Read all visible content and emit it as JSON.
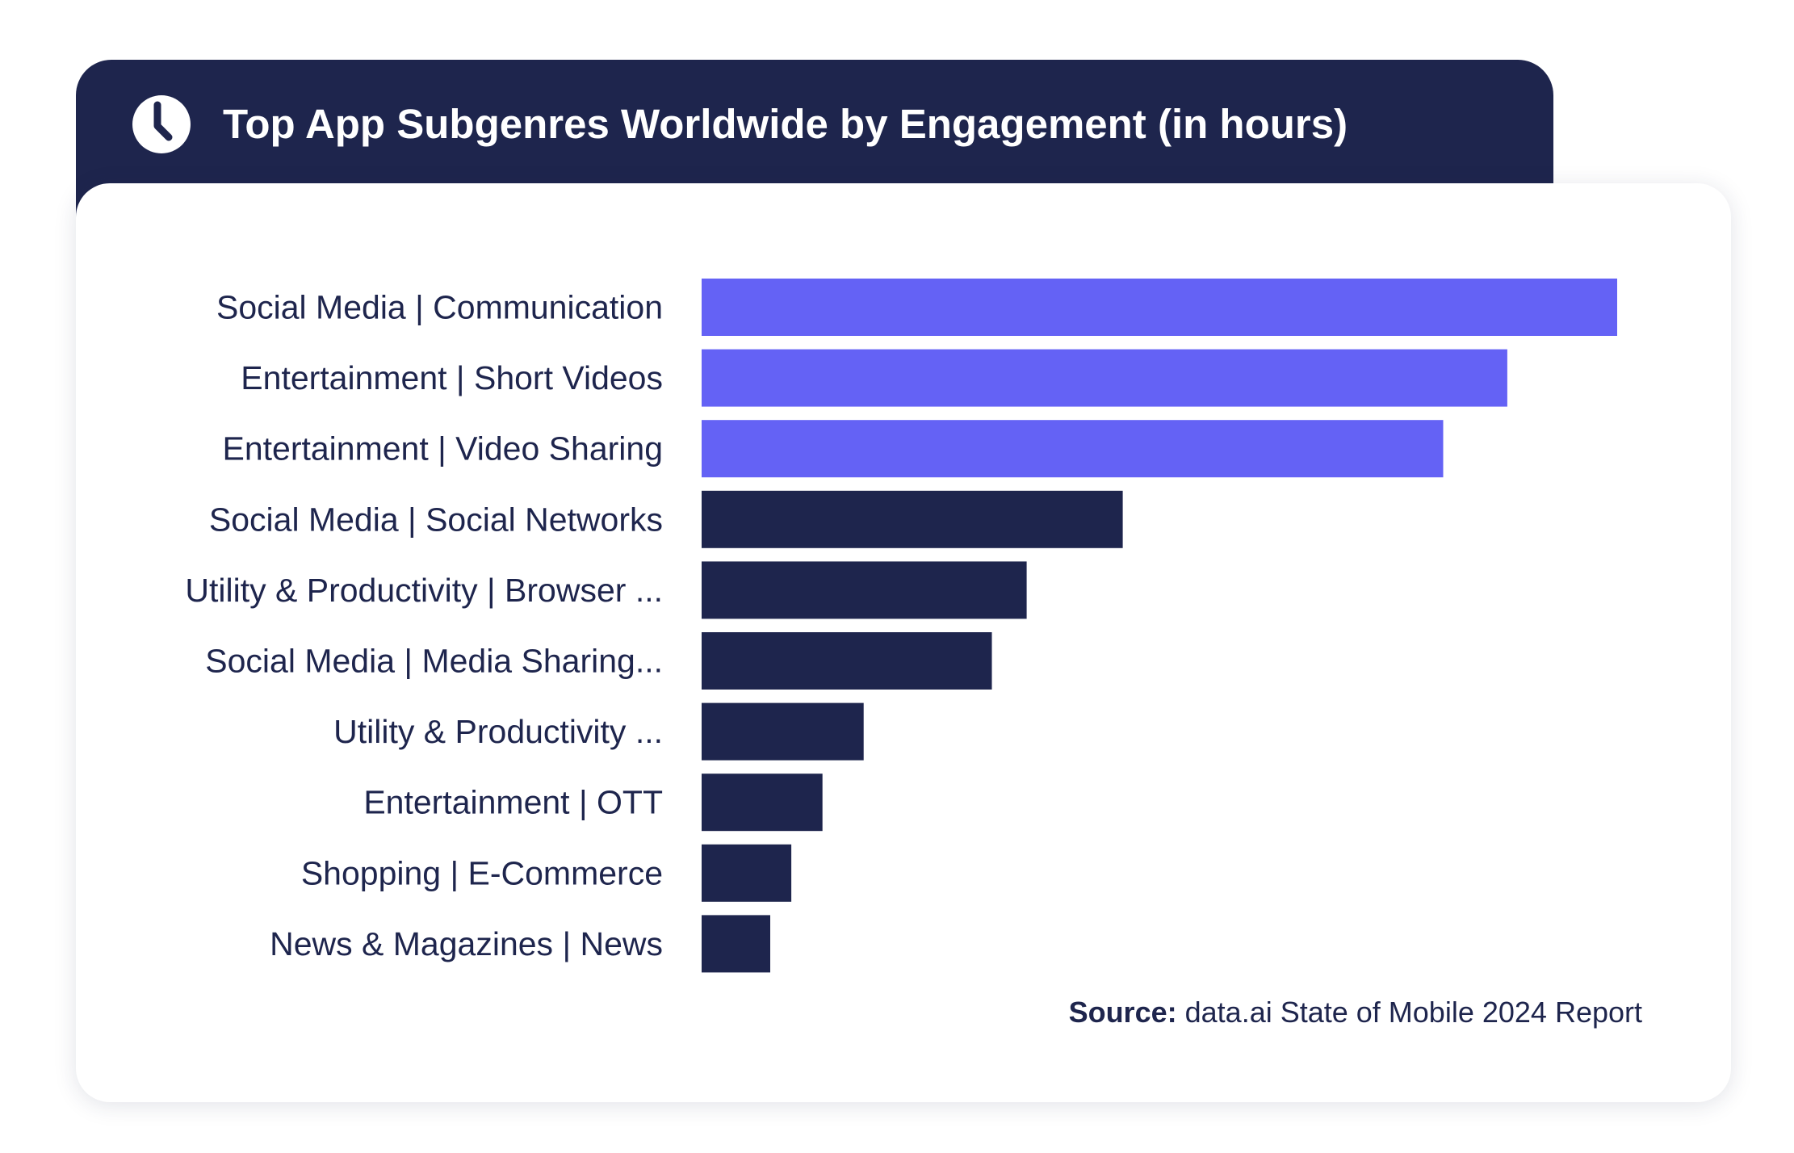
{
  "title": "Top App Subgenres Worldwide by Engagement (in hours)",
  "icon": "clock-icon",
  "colors": {
    "header_bg": "#1e254d",
    "highlight_bar": "#6462f5",
    "default_bar": "#1e254d",
    "label_text": "#1e254d"
  },
  "source": {
    "label": "Source:",
    "text": "data.ai State of Mobile 2024 Report"
  },
  "chart_data": {
    "type": "bar",
    "orientation": "horizontal",
    "title": "Top App Subgenres Worldwide by Engagement (in hours)",
    "categories": [
      "Social Media | Communication",
      "Entertainment | Short Videos",
      "Entertainment | Video Sharing",
      "Social Media | Social Networks",
      "Utility & Productivity | Browser ...",
      "Social Media | Media Sharing...",
      "Utility & Productivity ...",
      "Entertainment | OTT",
      "Shopping | E-Commerce",
      "News & Magazines | News"
    ],
    "values": [
      100,
      88,
      81,
      46,
      35.5,
      31.7,
      17.7,
      13.2,
      9.8,
      7.5
    ],
    "highlighted_count": 3,
    "xlim": [
      0,
      100
    ],
    "axis_shown": false,
    "grid": false,
    "legend": "none"
  }
}
